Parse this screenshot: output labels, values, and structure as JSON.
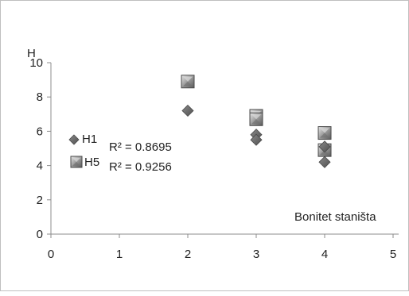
{
  "chart_data": {
    "type": "scatter",
    "ylabel": "H",
    "xlabel": "Bonitet staništa",
    "xlim": [
      0,
      5
    ],
    "ylim": [
      0,
      10
    ],
    "xticks": [
      "0",
      "1",
      "2",
      "3",
      "4",
      "5"
    ],
    "yticks": [
      "0",
      "2",
      "4",
      "6",
      "8",
      "10"
    ],
    "grid": false,
    "legend_position": "left",
    "series": [
      {
        "name": "H1",
        "marker": "diamond",
        "color": "#6b6b6b",
        "r2": "R² = 0.8695",
        "x": [
          2,
          3,
          3,
          4,
          4
        ],
        "y": [
          7.2,
          5.8,
          5.5,
          5.1,
          4.2
        ]
      },
      {
        "name": "H5",
        "marker": "square",
        "color": "#9a9a9a",
        "r2": "R² = 0.9256",
        "x": [
          2,
          3,
          3,
          4,
          4
        ],
        "y": [
          8.9,
          6.9,
          6.7,
          5.9,
          4.9
        ]
      }
    ]
  }
}
